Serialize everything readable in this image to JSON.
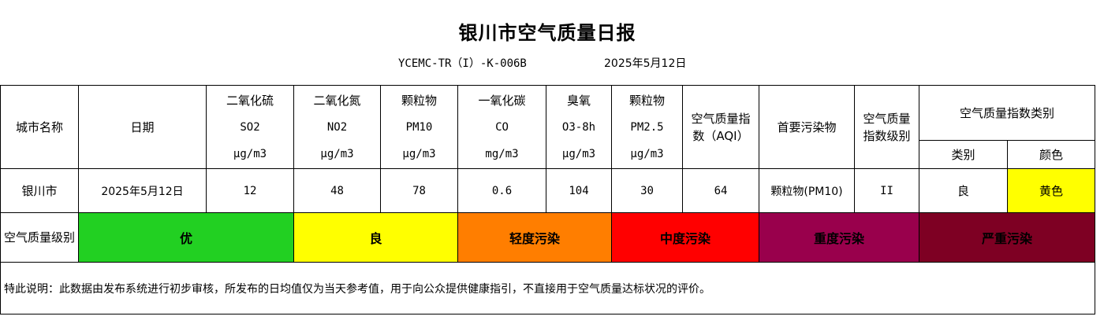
{
  "report": {
    "title": "银川市空气质量日报",
    "code": "YCEMC-TR（I）-K-006B",
    "date": "2025年5月12日"
  },
  "headers": {
    "city": "城市名称",
    "date": "日期",
    "so2": {
      "name": "二氧化硫",
      "code": "SO2",
      "unit": "μg/m3"
    },
    "no2": {
      "name": "二氧化氮",
      "code": "NO2",
      "unit": "μg/m3"
    },
    "pm10": {
      "name": "颗粒物",
      "code": "PM10",
      "unit": "μg/m3"
    },
    "co": {
      "name": "一氧化碳",
      "code": "CO",
      "unit": "mg/m3"
    },
    "o3": {
      "name": "臭氧",
      "code": "O3-8h",
      "unit": "μg/m3"
    },
    "pm25": {
      "name": "颗粒物",
      "code": "PM2.5",
      "unit": "μg/m3"
    },
    "aqi": "空气质量指数（AQI）",
    "primary": "首要污染物",
    "level": "空气质量指数级别",
    "category_group": "空气质量指数类别",
    "category": "类别",
    "color": "颜色"
  },
  "row": {
    "city": "银川市",
    "date": "2025年5月12日",
    "so2": "12",
    "no2": "48",
    "pm10": "78",
    "co": "0.6",
    "o3": "104",
    "pm25": "30",
    "aqi": "64",
    "primary": "颗粒物(PM10)",
    "level": "II",
    "category": "良",
    "color_text": "黄色",
    "color_hex": "#ffff00"
  },
  "levels": {
    "label": "空气质量级别",
    "items": [
      {
        "label": "优",
        "color": "#22d022"
      },
      {
        "label": "良",
        "color": "#ffff00"
      },
      {
        "label": "轻度污染",
        "color": "#ff7e00"
      },
      {
        "label": "中度污染",
        "color": "#ff0000"
      },
      {
        "label": "重度污染",
        "color": "#99004c"
      },
      {
        "label": "严重污染",
        "color": "#7e0023"
      }
    ]
  },
  "note": "特此说明：此数据由发布系统进行初步审核，所发布的日均值仅为当天参考值，用于向公众提供健康指引，不直接用于空气质量达标状况的评价。"
}
